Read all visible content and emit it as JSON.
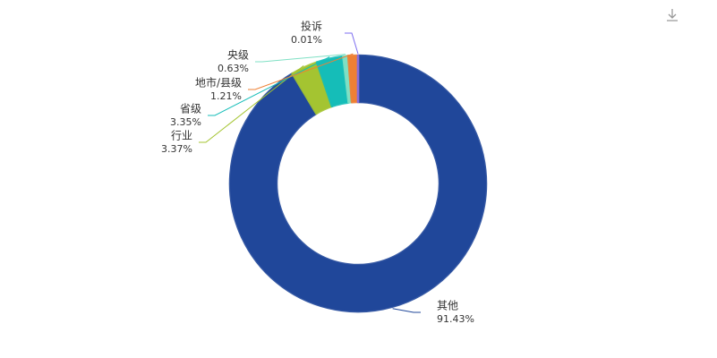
{
  "chart_data": {
    "type": "donut",
    "categories": [
      "其他",
      "行业",
      "省级",
      "央级",
      "地市/县级",
      "投诉"
    ],
    "values": [
      91.43,
      3.37,
      3.35,
      0.63,
      1.21,
      0.01
    ],
    "value_labels": [
      "91.43%",
      "3.37%",
      "3.35%",
      "0.63%",
      "1.21%",
      "0.01%"
    ],
    "colors": [
      "#20479a",
      "#a4c431",
      "#15bdb8",
      "#7fe0c4",
      "#ee8034",
      "#7c6cf0"
    ]
  }
}
